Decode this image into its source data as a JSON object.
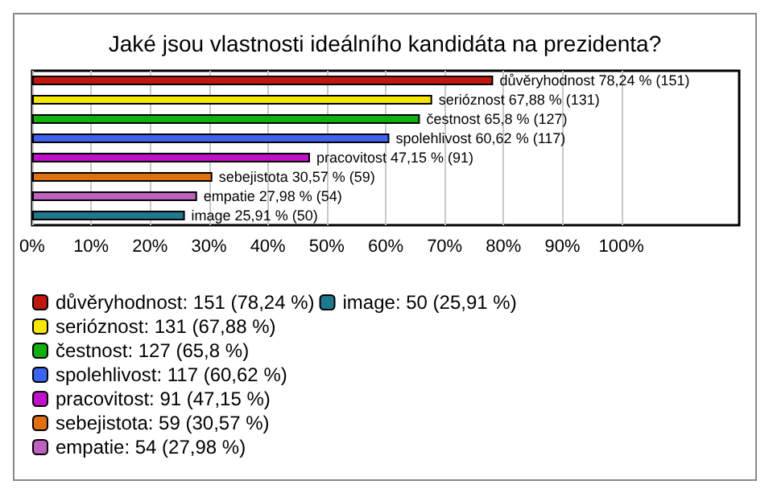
{
  "chart_data": {
    "type": "bar",
    "orientation": "horizontal",
    "stacked": true,
    "title": "Jaké jsou vlastnosti ideálního kandidáta na prezidenta?",
    "categories": [
      null,
      null,
      null,
      null,
      null,
      null,
      null,
      null
    ],
    "series": [
      {
        "name": "důvěryhodnost: 151 (78,24 %)",
        "color": "#c0180c",
        "values": [
          78.24,
          null,
          null,
          null,
          null,
          null,
          null,
          null
        ],
        "value_labels": [
          "důvěryhodnost 78,24 % (151)",
          null,
          null,
          null,
          null,
          null,
          null,
          null
        ]
      },
      {
        "name": "serióznost: 131 (67,88 %)",
        "color": "#f8e800",
        "values": [
          null,
          67.88,
          null,
          null,
          null,
          null,
          null,
          null
        ],
        "value_labels": [
          null,
          "serióznost 67,88 % (131)",
          null,
          null,
          null,
          null,
          null,
          null
        ]
      },
      {
        "name": "čestnost: 127 (65,8 %)",
        "color": "#10b010",
        "values": [
          null,
          null,
          65.8,
          null,
          null,
          null,
          null,
          null
        ],
        "value_labels": [
          null,
          null,
          "čestnost 65,8 % (127)",
          null,
          null,
          null,
          null,
          null
        ]
      },
      {
        "name": "spolehlivost: 117 (60,62 %)",
        "color": "#3c64f0",
        "values": [
          null,
          null,
          null,
          60.62,
          null,
          null,
          null,
          null
        ],
        "value_labels": [
          null,
          null,
          null,
          "spolehlivost 60,62 % (117)",
          null,
          null,
          null,
          null
        ]
      },
      {
        "name": "pracovitost: 91 (47,15 %)",
        "color": "#c010c8",
        "values": [
          null,
          null,
          null,
          null,
          47.15,
          null,
          null,
          null
        ],
        "value_labels": [
          null,
          null,
          null,
          null,
          "pracovitost 47,15 % (91)",
          null,
          null,
          null
        ]
      },
      {
        "name": "sebejistota: 59 (30,57 %)",
        "color": "#e07010",
        "values": [
          null,
          null,
          null,
          null,
          null,
          30.57,
          null,
          null
        ],
        "value_labels": [
          null,
          null,
          null,
          null,
          null,
          "sebejistota 30,57 % (59)",
          null,
          null
        ]
      },
      {
        "name": "empatie: 54 (27,98 %)",
        "color": "#c060c0",
        "values": [
          null,
          null,
          null,
          null,
          null,
          null,
          27.98,
          null
        ],
        "value_labels": [
          null,
          null,
          null,
          null,
          null,
          null,
          "empatie 27,98 % (54)",
          null
        ]
      },
      {
        "name": "image: 50 (25,91 %)",
        "color": "#207890",
        "values": [
          null,
          null,
          null,
          null,
          null,
          null,
          null,
          25.91
        ],
        "value_labels": [
          null,
          null,
          null,
          null,
          null,
          null,
          null,
          "image 25,91 % (50)"
        ]
      }
    ],
    "xlim": [
      0,
      120
    ],
    "xticks": [
      {
        "value": 0,
        "label": "0%"
      },
      {
        "value": 10,
        "label": "10%"
      },
      {
        "value": 20,
        "label": "20%"
      },
      {
        "value": 30,
        "label": "30%"
      },
      {
        "value": 40,
        "label": "40%"
      },
      {
        "value": 50,
        "label": "50%"
      },
      {
        "value": 60,
        "label": "60%"
      },
      {
        "value": 70,
        "label": "70%"
      },
      {
        "value": 80,
        "label": "80%"
      },
      {
        "value": 90,
        "label": "90%"
      },
      {
        "value": 100,
        "label": "100%"
      }
    ],
    "grid": "x",
    "legend": "bottom left"
  }
}
